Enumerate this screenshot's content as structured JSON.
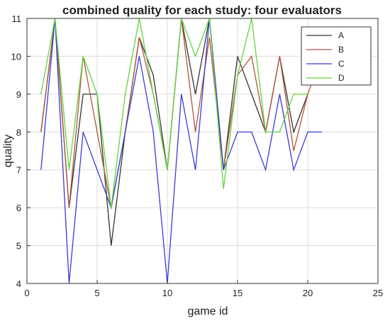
{
  "chart_data": {
    "type": "line",
    "title": "combined quality for each study: four evaluators",
    "xlabel": "game id",
    "ylabel": "quality",
    "xlim": [
      0,
      25
    ],
    "ylim": [
      4,
      11
    ],
    "xticks": [
      0,
      5,
      10,
      15,
      20,
      25
    ],
    "yticks": [
      4,
      5,
      6,
      7,
      8,
      9,
      10,
      11
    ],
    "grid": true,
    "legend_position": "top-right",
    "series": [
      {
        "name": "A",
        "color": "#333333",
        "x": [
          1,
          2,
          3,
          4,
          5,
          6,
          7,
          8,
          9,
          10,
          11,
          12,
          13,
          14,
          15,
          16,
          17,
          18,
          19,
          20
        ],
        "y": [
          8,
          11,
          6,
          9,
          9,
          5,
          8,
          10.5,
          9.5,
          7,
          11,
          9,
          11,
          7,
          10,
          9,
          8,
          10,
          8,
          9
        ]
      },
      {
        "name": "B",
        "color": "#b5533c",
        "x": [
          1,
          2,
          3,
          4,
          5,
          6,
          7,
          8,
          9,
          10,
          11,
          12,
          13,
          14,
          15,
          16,
          17,
          18,
          19,
          20,
          21
        ],
        "y": [
          8,
          11,
          6,
          10,
          8,
          6,
          8,
          10.5,
          9,
          7,
          11,
          8,
          10.5,
          7,
          9.5,
          10,
          8,
          10,
          7.5,
          9,
          10
        ]
      },
      {
        "name": "C",
        "color": "#3b3bd6",
        "x": [
          1,
          2,
          3,
          4,
          5,
          6,
          7,
          8,
          9,
          10,
          11,
          12,
          13,
          14,
          15,
          16,
          17,
          18,
          19,
          20,
          21
        ],
        "y": [
          7,
          11,
          4,
          8,
          7,
          6,
          8,
          10,
          8,
          4,
          9,
          7,
          11,
          7,
          8,
          8,
          7,
          9,
          7,
          8,
          8
        ]
      },
      {
        "name": "D",
        "color": "#5ed63b",
        "x": [
          1,
          2,
          3,
          4,
          5,
          6,
          7,
          8,
          9,
          10,
          11,
          12,
          13,
          14,
          15,
          16,
          17,
          18,
          19,
          20
        ],
        "y": [
          9,
          11,
          7,
          10,
          9,
          6,
          9,
          11,
          9,
          7,
          11,
          10,
          11,
          6.5,
          9.5,
          11,
          8,
          8,
          9,
          9
        ]
      }
    ]
  }
}
